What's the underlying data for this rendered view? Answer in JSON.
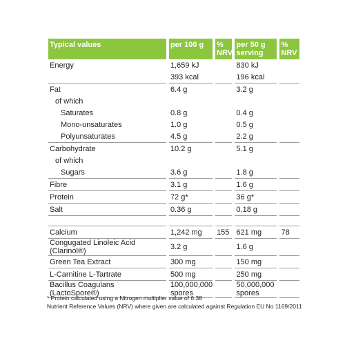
{
  "header": [
    "Typical values",
    "per 100 g",
    "% NRV",
    "per 50 g serving",
    "% NRV"
  ],
  "sections": [
    [
      [
        {
          "label": "Energy",
          "per100": "1,659 kJ",
          "per50": "830 kJ"
        },
        {
          "per100": "393 kcal",
          "per50": "196 kcal"
        }
      ],
      [
        {
          "label": "Fat",
          "per100": "6.4 g",
          "per50": "3.2 g"
        },
        {
          "label": "of which",
          "indent": 1
        },
        {
          "label": "Saturates",
          "indent": 2,
          "per100": "0.8 g",
          "per50": "0.4 g"
        },
        {
          "label": "Mono-unsaturates",
          "indent": 2,
          "per100": "1.0 g",
          "per50": "0.5 g"
        },
        {
          "label": "Polyunsaturates",
          "indent": 2,
          "per100": "4.5 g",
          "per50": "2.2 g"
        }
      ],
      [
        {
          "label": "Carbohydrate",
          "per100": "10.2 g",
          "per50": "5.1 g"
        },
        {
          "label": "of which",
          "indent": 1
        },
        {
          "label": "Sugars",
          "indent": 2,
          "per100": "3.6 g",
          "per50": "1.8 g"
        }
      ],
      [
        {
          "label": "Fibre",
          "per100": "3.1 g",
          "per50": "1.6 g"
        }
      ],
      [
        {
          "label": "Protein",
          "per100": "72 g*",
          "per50": "36 g*"
        }
      ],
      [
        {
          "label": "Salt",
          "per100": "0.36 g",
          "per50": "0.18 g"
        }
      ]
    ],
    [
      [
        {
          "label": "Calcium",
          "per100": "1,242 mg",
          "nrv100": "155",
          "per50": "621 mg",
          "nrv50": "78"
        }
      ],
      [
        {
          "label": "Congugated Linoleic Acid (Clarinol®)",
          "per100": "3.2 g",
          "per50": "1.6 g"
        }
      ],
      [
        {
          "label": "Green Tea Extract",
          "per100": "300 mg",
          "per50": "150 mg"
        }
      ],
      [
        {
          "label": "L-Carnitine L-Tartrate",
          "per100": "500 mg",
          "per50": "250 mg"
        }
      ],
      [
        {
          "label": "Bacillus Coagulans (LactoSpore®)",
          "per100": "100,000,000 spores",
          "per50": "50,000,000 spores"
        }
      ]
    ]
  ],
  "footnotes": [
    "* Protein calculated using a Nitrogen multiplier value of 6.38",
    "Nutrient Reference Values (NRV) where given are calculated against Regulation EU No 1169/2011"
  ]
}
